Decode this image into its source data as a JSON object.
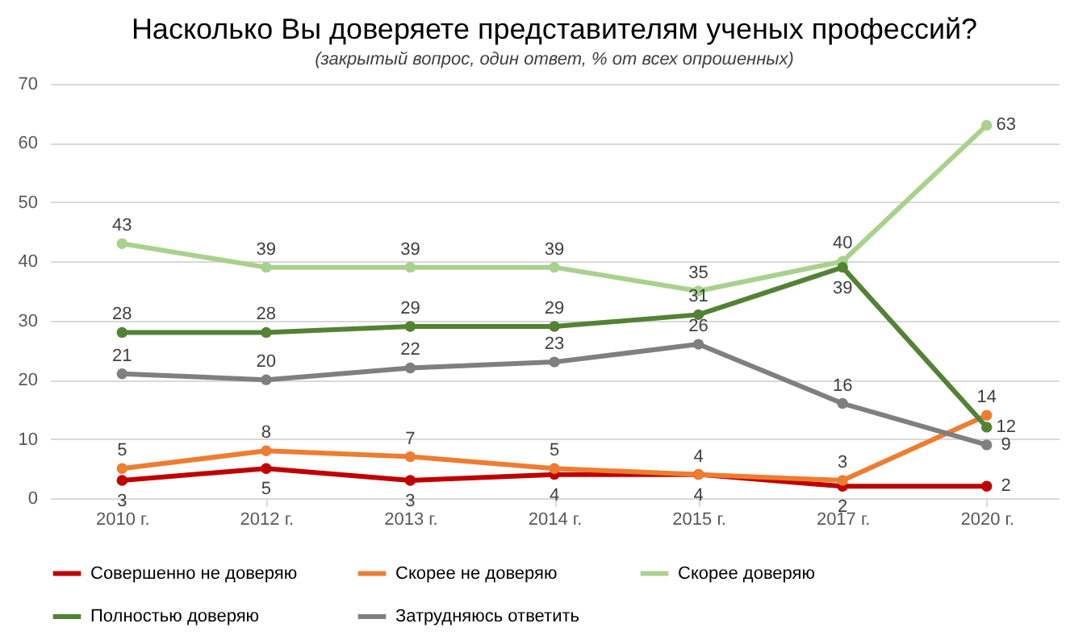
{
  "chart_data": {
    "type": "line",
    "title": "Насколько Вы доверяете представителям ученых профессий?",
    "subtitle": "(закрытый вопрос, один ответ, % от всех опрошенных)",
    "categories": [
      "2010 г.",
      "2012 г.",
      "2013 г.",
      "2014 г.",
      "2015 г.",
      "2017 г.",
      "2020 г."
    ],
    "series": [
      {
        "name": "Совершенно не доверяю",
        "color": "#c00000",
        "values": [
          3,
          5,
          3,
          4,
          4,
          2,
          2
        ]
      },
      {
        "name": "Скорее не доверяю",
        "color": "#ed7d31",
        "values": [
          5,
          8,
          7,
          5,
          4,
          3,
          14
        ]
      },
      {
        "name": "Скорее доверяю",
        "color": "#a9d18e",
        "values": [
          43,
          39,
          39,
          39,
          35,
          40,
          63
        ]
      },
      {
        "name": "Полностью доверяю",
        "color": "#548235",
        "values": [
          28,
          28,
          29,
          29,
          31,
          39,
          12
        ]
      },
      {
        "name": "Затрудняюсь ответить",
        "color": "#7f7f7f",
        "values": [
          21,
          20,
          22,
          23,
          26,
          16,
          9
        ]
      }
    ],
    "ylim": [
      0,
      70
    ],
    "yticks": [
      0,
      10,
      20,
      30,
      40,
      50,
      60,
      70
    ],
    "grid": "y",
    "legend": "bottom",
    "marker": "circle",
    "line_style": "solid",
    "data_labels": true
  }
}
